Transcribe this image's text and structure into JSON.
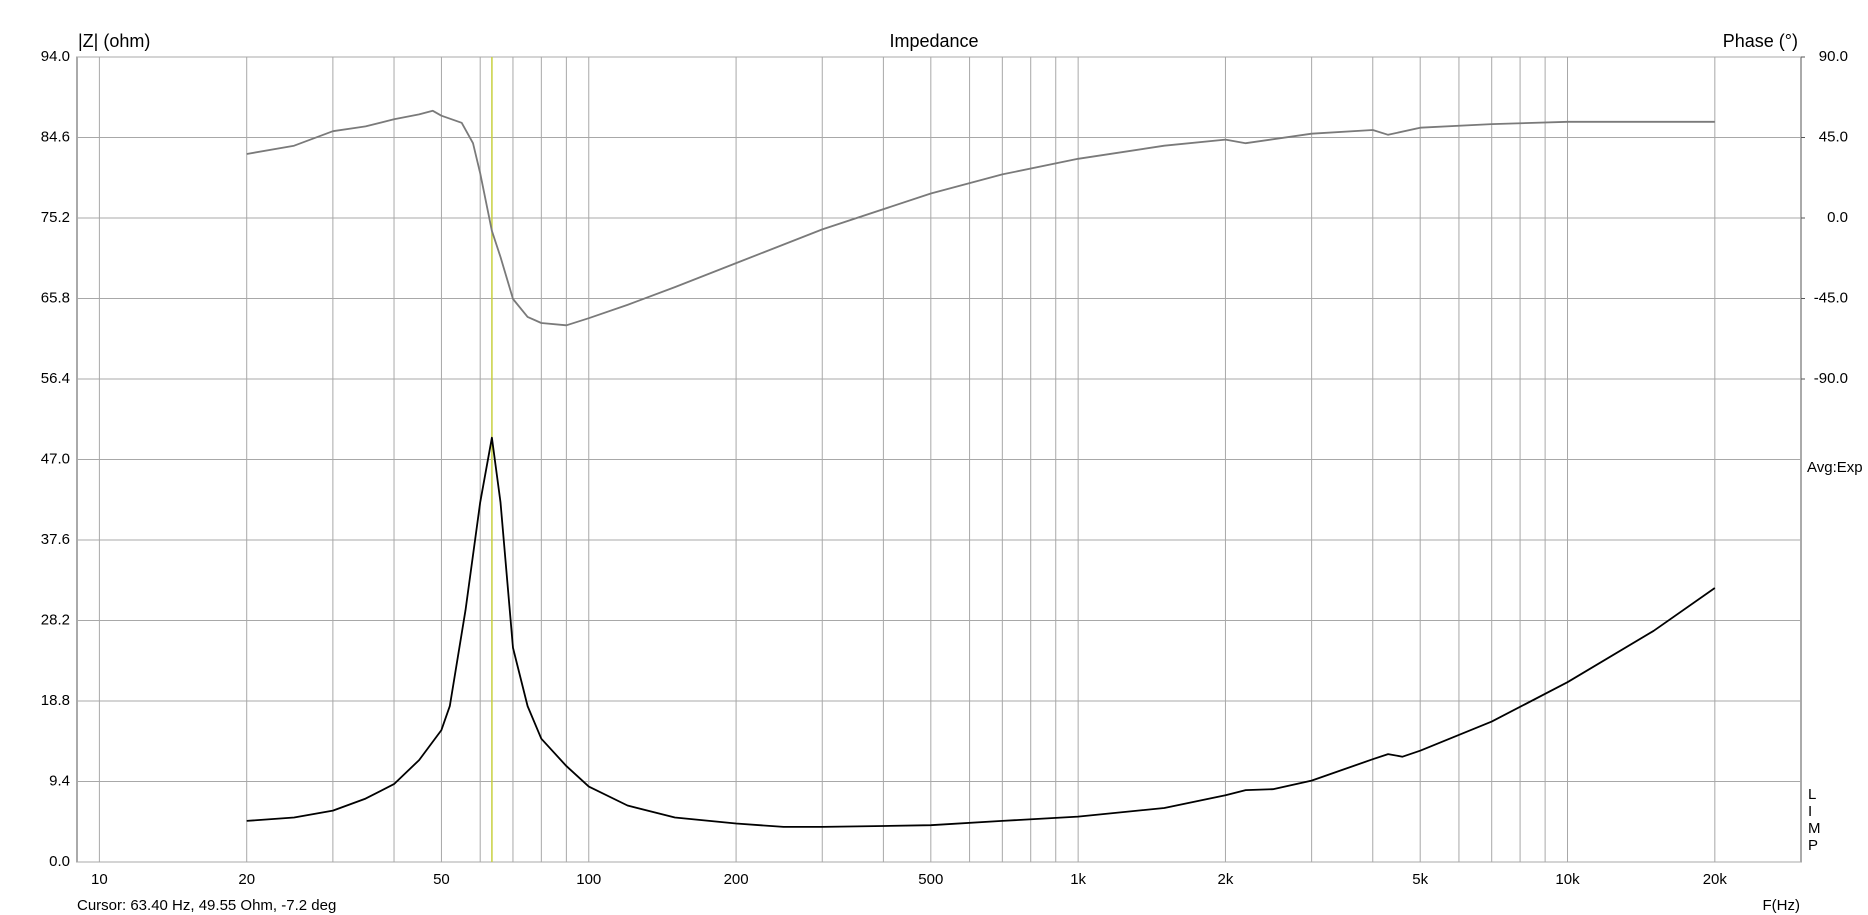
{
  "chart_data": {
    "type": "line",
    "title": "Impedance",
    "y_label": "|Z| (ohm)",
    "y2_label": "Phase (°)",
    "x_label": "F(Hz)",
    "annotations": {
      "averaging": "Avg:Exp",
      "side_letters": [
        "L",
        "I",
        "M",
        "P"
      ],
      "cursor_text": "Cursor: 63.40 Hz, 49.55 Ohm, -7.2 deg"
    },
    "cursor_x": 63.4,
    "cursor_color": "#c8d040",
    "log_x": true,
    "grid": true,
    "xlim": [
      9,
      30000
    ],
    "xticks": [
      10,
      20,
      50,
      100,
      200,
      500,
      {
        "value": 1000,
        "label": "1k"
      },
      {
        "value": 2000,
        "label": "2k"
      },
      {
        "value": 5000,
        "label": "5k"
      },
      {
        "value": 10000,
        "label": "10k"
      },
      {
        "value": 20000,
        "label": "20k"
      }
    ],
    "xminor": [
      30,
      40,
      60,
      70,
      80,
      90,
      300,
      400,
      600,
      700,
      800,
      900,
      3000,
      4000,
      6000,
      7000,
      8000,
      9000
    ],
    "ylim": [
      0,
      94
    ],
    "yticks": [
      {
        "value": 0,
        "label": "0.0"
      },
      9.4,
      18.8,
      28.2,
      37.6,
      {
        "value": 47,
        "label": "47.0"
      },
      56.4,
      65.8,
      75.2,
      84.6,
      {
        "value": 94,
        "label": "94.0"
      }
    ],
    "y2lim": [
      -360,
      90
    ],
    "y2ticks": [
      {
        "value": -90,
        "label": "-90.0"
      },
      {
        "value": -45,
        "label": "-45.0"
      },
      {
        "value": 0,
        "label": "0.0"
      },
      {
        "value": 45,
        "label": "45.0"
      },
      {
        "value": 90,
        "label": "90.0"
      }
    ],
    "series": [
      {
        "name": "Impedance",
        "color": "#000000",
        "x": [
          20,
          25,
          30,
          35,
          40,
          45,
          50,
          52,
          56,
          60,
          63.4,
          66,
          70,
          75,
          80,
          90,
          100,
          120,
          150,
          200,
          250,
          300,
          400,
          500,
          700,
          1000,
          1500,
          2000,
          2200,
          2500,
          3000,
          4000,
          4300,
          4600,
          5000,
          7000,
          10000,
          15000,
          20000
        ],
        "values": [
          4.8,
          5.2,
          6.0,
          7.4,
          9.1,
          11.9,
          15.4,
          18.2,
          29.4,
          42,
          49.55,
          42,
          25,
          18.2,
          14.4,
          11.2,
          8.8,
          6.6,
          5.2,
          4.5,
          4.1,
          4.1,
          4.2,
          4.3,
          4.8,
          5.3,
          6.3,
          7.8,
          8.4,
          8.5,
          9.5,
          12.0,
          12.6,
          12.3,
          13.0,
          16.4,
          21.0,
          27.0,
          32.0
        ]
      },
      {
        "name": "Phase",
        "color": "#7a7a7a",
        "axis": "y2",
        "x": [
          20,
          25,
          30,
          35,
          40,
          45,
          48,
          50,
          55,
          58,
          60,
          63.4,
          66,
          70,
          75,
          80,
          90,
          100,
          120,
          150,
          200,
          300,
          500,
          700,
          1000,
          1500,
          2000,
          2200,
          3000,
          4000,
          4300,
          5000,
          7000,
          10000,
          20000
        ],
        "values": [
          35.8,
          40.4,
          48.5,
          51.2,
          55.2,
          57.9,
          59.9,
          57.2,
          53.2,
          41.8,
          25,
          -7.2,
          -21.8,
          -45.3,
          -55.3,
          -58.7,
          -60,
          -56,
          -48.6,
          -38.6,
          -25.2,
          -6.4,
          13.7,
          24.4,
          33.1,
          40.4,
          43.8,
          41.8,
          47.1,
          49.2,
          46.5,
          50.5,
          52.5,
          53.8,
          53.8
        ]
      }
    ]
  }
}
